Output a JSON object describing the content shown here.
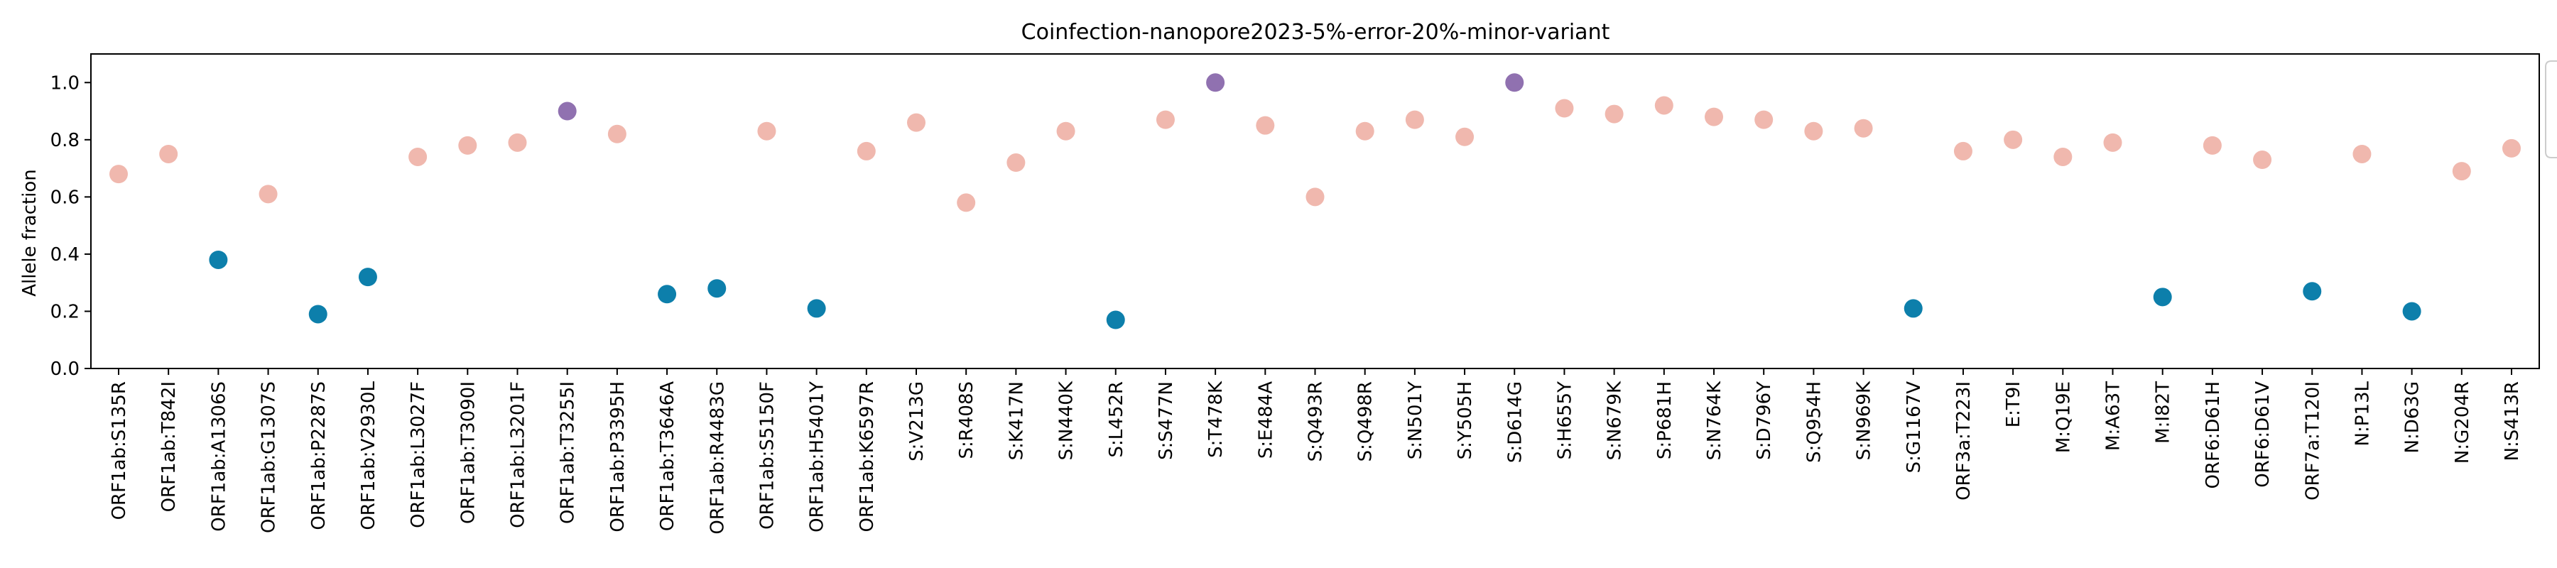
{
  "chart_data": {
    "type": "scatter",
    "title": "Coinfection-nanopore2023-5%-error-20%-minor-variant",
    "xlabel": "",
    "ylabel": "Allele fraction",
    "ylim": [
      0.0,
      1.1
    ],
    "yticks": [
      "0.0",
      "0.2",
      "0.4",
      "0.6",
      "0.8",
      "1.0"
    ],
    "grid": false,
    "legend_placement": "right, clipped at edge",
    "colors": {
      "major": "#f0b8ae",
      "minor": "#0d7fab",
      "both": "#9071b0"
    },
    "categories": [
      "ORF1ab:S135R",
      "ORF1ab:T842I",
      "ORF1ab:A1306S",
      "ORF1ab:G1307S",
      "ORF1ab:P2287S",
      "ORF1ab:V2930L",
      "ORF1ab:L3027F",
      "ORF1ab:T3090I",
      "ORF1ab:L3201F",
      "ORF1ab:T3255I",
      "ORF1ab:P3395H",
      "ORF1ab:T3646A",
      "ORF1ab:R4483G",
      "ORF1ab:S5150F",
      "ORF1ab:H5401Y",
      "ORF1ab:K6597R",
      "S:V213G",
      "S:R408S",
      "S:K417N",
      "S:N440K",
      "S:L452R",
      "S:S477N",
      "S:T478K",
      "S:E484A",
      "S:Q493R",
      "S:Q498R",
      "S:N501Y",
      "S:Y505H",
      "S:D614G",
      "S:H655Y",
      "S:N679K",
      "S:P681H",
      "S:N764K",
      "S:D796Y",
      "S:Q954H",
      "S:N969K",
      "S:G1167V",
      "ORF3a:T223I",
      "E:T9I",
      "M:Q19E",
      "M:A63T",
      "M:I82T",
      "ORF6:D61H",
      "ORF6:D61V",
      "ORF7a:T120I",
      "N:P13L",
      "N:D63G",
      "N:G204R",
      "N:S413R"
    ],
    "values": [
      0.68,
      0.75,
      0.38,
      0.61,
      0.19,
      0.32,
      0.74,
      0.78,
      0.79,
      0.9,
      0.82,
      0.26,
      0.28,
      0.83,
      0.21,
      0.76,
      0.86,
      0.58,
      0.72,
      0.83,
      0.17,
      0.87,
      1.0,
      0.85,
      0.6,
      0.83,
      0.87,
      0.81,
      1.0,
      0.91,
      0.89,
      0.92,
      0.88,
      0.87,
      0.83,
      0.84,
      0.21,
      0.76,
      0.8,
      0.74,
      0.79,
      0.25,
      0.78,
      0.73,
      0.27,
      0.75,
      0.2,
      0.69,
      0.77
    ],
    "groups": [
      "major",
      "major",
      "minor",
      "major",
      "minor",
      "minor",
      "major",
      "major",
      "major",
      "both",
      "major",
      "minor",
      "minor",
      "major",
      "minor",
      "major",
      "major",
      "major",
      "major",
      "major",
      "minor",
      "major",
      "both",
      "major",
      "major",
      "major",
      "major",
      "major",
      "both",
      "major",
      "major",
      "major",
      "major",
      "major",
      "major",
      "major",
      "minor",
      "major",
      "major",
      "major",
      "major",
      "minor",
      "major",
      "major",
      "minor",
      "major",
      "minor",
      "major",
      "major"
    ]
  }
}
